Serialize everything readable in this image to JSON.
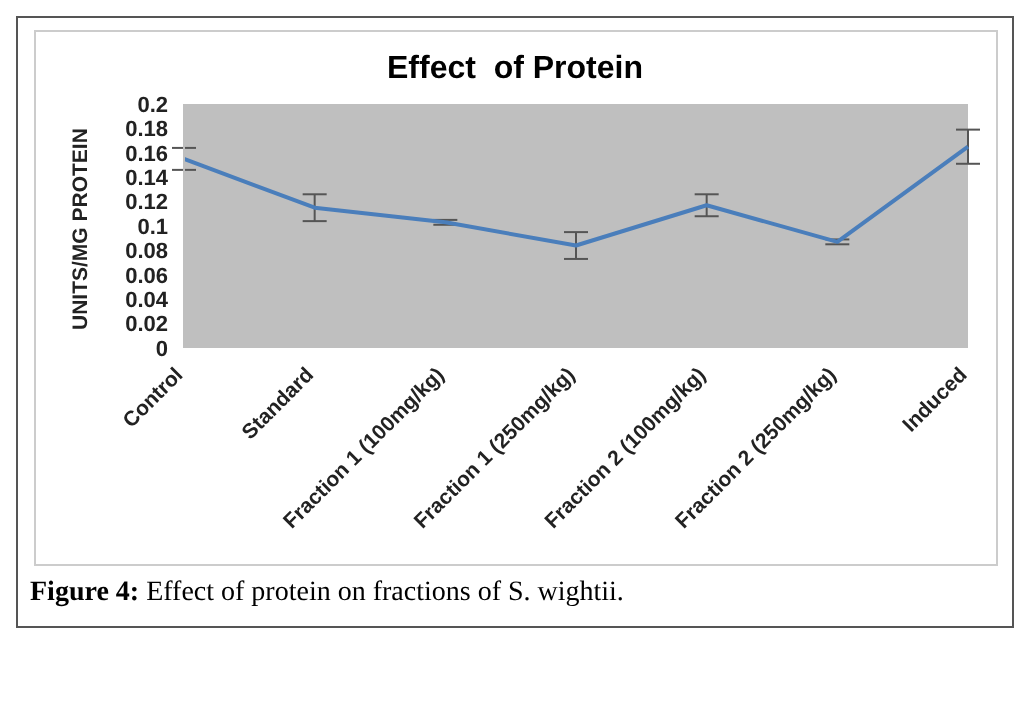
{
  "chart_data": {
    "type": "line",
    "title": "Effect  of Protein",
    "ylabel": "UNITS/MG PROTEIN",
    "categories": [
      "Control",
      "Standard",
      "Fraction 1 (100mg/kg)",
      "Fraction 1 (250mg/kg)",
      "Fraction 2 (100mg/kg)",
      "Fraction 2 (250mg/kg)",
      "Induced"
    ],
    "series": [
      {
        "color": "#4a7ebb",
        "values": [
          0.155,
          0.115,
          0.103,
          0.084,
          0.117,
          0.087,
          0.165
        ],
        "errors": [
          0.009,
          0.011,
          0.002,
          0.011,
          0.009,
          0.002,
          0.014
        ]
      }
    ],
    "ylim": [
      0,
      0.2
    ],
    "yticks": [
      0,
      0.02,
      0.04,
      0.06,
      0.08,
      0.1,
      0.12,
      0.14,
      0.16,
      0.18,
      0.2
    ],
    "marker": "none",
    "legend": false,
    "grid": false,
    "annotations": [
      "Figure 4: Effect of protein on fractions of S. wightii."
    ]
  }
}
